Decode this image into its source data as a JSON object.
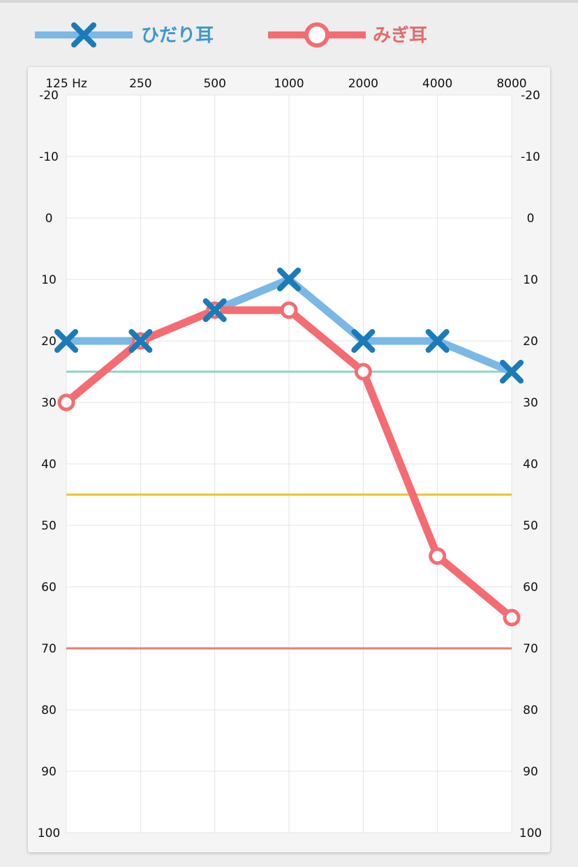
{
  "legend": {
    "left_ear": {
      "label": "ひだり耳",
      "color": "#7ab8e6",
      "marker_color": "#1b7bb8",
      "text_color": "#3a98d0",
      "marker": "x-icon"
    },
    "right_ear": {
      "label": "みぎ耳",
      "color": "#f46c72",
      "marker_color": "#f46c72",
      "text_color": "#e46a6a",
      "marker": "circle-icon"
    }
  },
  "chart_data": {
    "type": "line",
    "x_labels": [
      "125 Hz",
      "250",
      "500",
      "1000",
      "2000",
      "4000",
      "8000"
    ],
    "x": [
      125,
      250,
      500,
      1000,
      2000,
      4000,
      8000
    ],
    "y_ticks": [
      "-20",
      "-10",
      "0",
      "10",
      "20",
      "30",
      "40",
      "50",
      "60",
      "70",
      "80",
      "90",
      "100"
    ],
    "ylim": [
      -20,
      100
    ],
    "y_inverted": true,
    "x_scale": "log",
    "grid": true,
    "series": [
      {
        "name": "ひだり耳",
        "values": [
          20,
          20,
          15,
          10,
          20,
          20,
          25
        ],
        "color": "#7ab8e6",
        "marker": "x",
        "marker_color": "#1b7bb8"
      },
      {
        "name": "みぎ耳",
        "values": [
          30,
          20,
          15,
          15,
          25,
          55,
          65
        ],
        "color": "#f46c72",
        "marker": "circle",
        "marker_color": "#f46c72"
      }
    ],
    "reference_lines": [
      {
        "y": 25,
        "color": "#8fd3bd"
      },
      {
        "y": 45,
        "color": "#e8c22a"
      },
      {
        "y": 70,
        "color": "#ef7b74"
      }
    ]
  }
}
